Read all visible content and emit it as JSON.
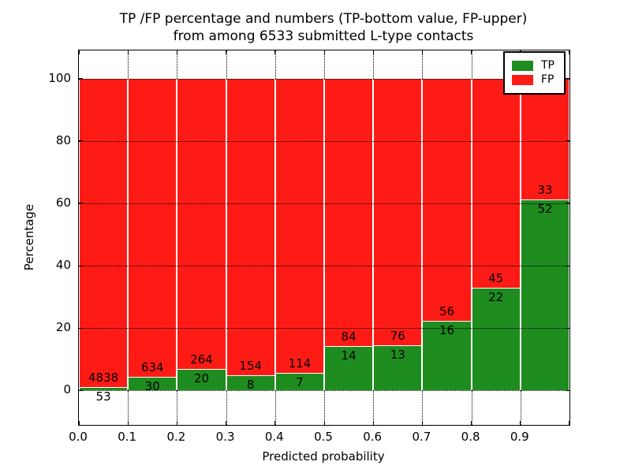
{
  "chart_data": {
    "type": "bar",
    "stacked": true,
    "normalized": "each bin stacked to 100%",
    "title_line1": "TP /FP percentage and numbers (TP-bottom value, FP-upper)",
    "title_line2": "from among 6533 submitted L-type contacts",
    "xlabel": "Predicted probability",
    "ylabel": "Percentage",
    "total_contacts": 6533,
    "bin_width": 0.1,
    "bin_starts": [
      0.0,
      0.1,
      0.2,
      0.3,
      0.4,
      0.5,
      0.6,
      0.7,
      0.8,
      0.9
    ],
    "xticks": [
      "0.0",
      "0.1",
      "0.2",
      "0.3",
      "0.4",
      "0.5",
      "0.6",
      "0.7",
      "0.8",
      "0.9"
    ],
    "yticks": [
      0,
      20,
      40,
      60,
      80,
      100
    ],
    "xlim": [
      0.0,
      1.0
    ],
    "ylim": [
      -11,
      109
    ],
    "grid_style": "dotted",
    "series": [
      {
        "name": "TP",
        "color": "#1e8c1e",
        "counts": [
          53,
          30,
          20,
          8,
          7,
          14,
          13,
          16,
          22,
          52
        ]
      },
      {
        "name": "FP",
        "color": "#fe1b16",
        "counts": [
          4838,
          634,
          264,
          154,
          114,
          84,
          76,
          56,
          45,
          33
        ]
      }
    ],
    "tp_percent": [
      1.08,
      4.52,
      7.04,
      4.94,
      5.79,
      14.29,
      14.61,
      22.22,
      32.84,
      61.18
    ],
    "legend": {
      "position": "upper-right",
      "entries": [
        {
          "label": "TP",
          "color": "#1e8c1e"
        },
        {
          "label": "FP",
          "color": "#fe1b16"
        }
      ]
    }
  },
  "colors": {
    "background": "#ffffff",
    "axis": "#000000",
    "grid": "#000000",
    "text": "#000000",
    "bar_edge": "#ffffff"
  }
}
